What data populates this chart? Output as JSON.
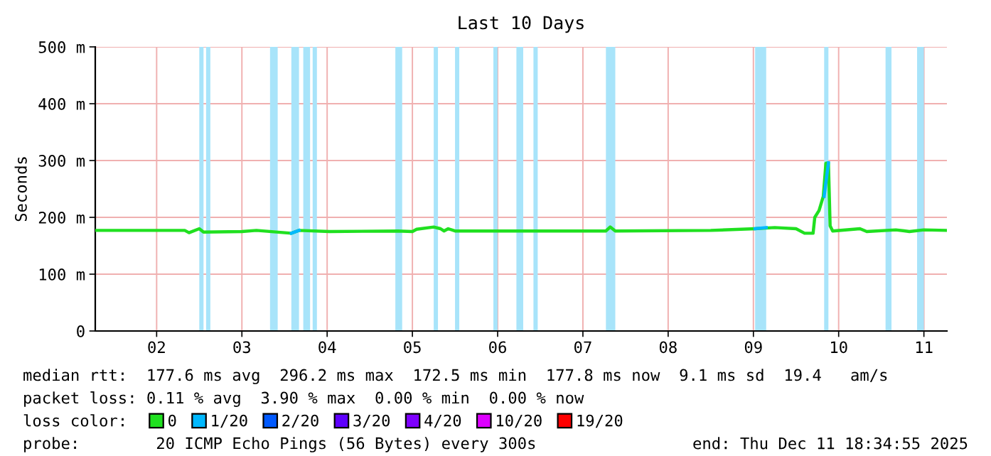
{
  "chart_data": {
    "type": "line",
    "title": "Last 10 Days",
    "ylabel": "Seconds",
    "xlim": [
      1.78,
      11.77
    ],
    "xticks": [
      {
        "value": 2.5,
        "label": "02"
      },
      {
        "value": 3.5,
        "label": "03"
      },
      {
        "value": 4.5,
        "label": "04"
      },
      {
        "value": 5.5,
        "label": "05"
      },
      {
        "value": 6.5,
        "label": "06"
      },
      {
        "value": 7.5,
        "label": "07"
      },
      {
        "value": 8.5,
        "label": "08"
      },
      {
        "value": 9.5,
        "label": "09"
      },
      {
        "value": 10.5,
        "label": "10"
      },
      {
        "value": 11.5,
        "label": "11"
      }
    ],
    "ylim": [
      0,
      500
    ],
    "yticks": [
      0,
      {
        "value": 100,
        "label": "100 m"
      },
      {
        "value": 200,
        "label": "200 m"
      },
      {
        "value": 300,
        "label": "300 m"
      },
      {
        "value": 400,
        "label": "400 m"
      },
      {
        "value": 500,
        "label": "500 m"
      }
    ],
    "grid": true,
    "legend": "bottom",
    "legend_title": "loss color:",
    "marker": "none",
    "line_style": "solid",
    "series": [
      {
        "name": "0",
        "color": "#20e020",
        "x": [
          1.78,
          2.83,
          2.88,
          3.0,
          3.05,
          3.5,
          3.67,
          4.08,
          4.17,
          4.53,
          5.33,
          5.5,
          5.55,
          5.75,
          5.83,
          5.87,
          5.92,
          6.0,
          7.77,
          7.82,
          7.88,
          9.0,
          9.52,
          9.75,
          10.0,
          10.1,
          10.2,
          10.22,
          10.27,
          10.32,
          10.35,
          10.38,
          10.4,
          10.43,
          10.75,
          10.83,
          11.17,
          11.33,
          11.5,
          11.77
        ],
        "values": [
          177,
          177,
          173,
          180,
          174,
          175,
          177,
          172,
          177,
          175,
          176,
          175,
          179,
          183,
          180,
          176,
          180,
          176,
          176,
          183,
          176,
          177,
          180,
          182,
          180,
          172,
          172,
          200,
          212,
          237,
          295,
          296,
          185,
          176,
          180,
          175,
          178,
          175,
          178,
          177
        ]
      },
      {
        "name": "1/20",
        "color": "#00b8ff",
        "x": [
          4.08,
          4.17,
          null,
          9.52,
          9.65,
          null,
          10.33,
          10.38
        ],
        "values": [
          172,
          177,
          null,
          180,
          182,
          null,
          237,
          296
        ]
      },
      {
        "name": "2/20",
        "color": "#0059ff"
      },
      {
        "name": "3/20",
        "color": "#5e00ff"
      },
      {
        "name": "4/20",
        "color": "#7e00ff"
      },
      {
        "name": "10/20",
        "color": "#dd00ff"
      },
      {
        "name": "19/20",
        "color": "#ff0000"
      }
    ],
    "bands": [
      {
        "axis": "x",
        "from": 3.0,
        "to": 3.05,
        "color": "#a8e4fa"
      },
      {
        "axis": "x",
        "from": 3.08,
        "to": 3.13,
        "color": "#a8e4fa"
      },
      {
        "axis": "x",
        "from": 3.83,
        "to": 3.92,
        "color": "#a8e4fa"
      },
      {
        "axis": "x",
        "from": 4.08,
        "to": 4.17,
        "color": "#a8e4fa"
      },
      {
        "axis": "x",
        "from": 4.22,
        "to": 4.3,
        "color": "#a8e4fa"
      },
      {
        "axis": "x",
        "from": 4.33,
        "to": 4.38,
        "color": "#a8e4fa"
      },
      {
        "axis": "x",
        "from": 5.3,
        "to": 5.38,
        "color": "#a8e4fa"
      },
      {
        "axis": "x",
        "from": 5.75,
        "to": 5.8,
        "color": "#a8e4fa"
      },
      {
        "axis": "x",
        "from": 6.0,
        "to": 6.05,
        "color": "#a8e4fa"
      },
      {
        "axis": "x",
        "from": 6.45,
        "to": 6.5,
        "color": "#a8e4fa"
      },
      {
        "axis": "x",
        "from": 6.72,
        "to": 6.8,
        "color": "#a8e4fa"
      },
      {
        "axis": "x",
        "from": 6.92,
        "to": 6.97,
        "color": "#a8e4fa"
      },
      {
        "axis": "x",
        "from": 7.77,
        "to": 7.88,
        "color": "#a8e4fa"
      },
      {
        "axis": "x",
        "from": 9.52,
        "to": 9.65,
        "color": "#a8e4fa"
      },
      {
        "axis": "x",
        "from": 10.33,
        "to": 10.38,
        "color": "#a8e4fa"
      },
      {
        "axis": "x",
        "from": 11.05,
        "to": 11.12,
        "color": "#a8e4fa"
      },
      {
        "axis": "x",
        "from": 11.42,
        "to": 11.5,
        "color": "#a8e4fa"
      }
    ],
    "annotations": [
      "median rtt:  177.6 ms avg  296.2 ms max  172.5 ms min  177.8 ms now  9.1 ms sd  19.4   am/s",
      "packet loss: 0.11 % avg  3.90 % max  0.00 % min  0.00 % now",
      "probe:        20 ICMP Echo Pings (56 Bytes) every 300s",
      "end: Thu Dec 11 18:34:55 2025"
    ]
  }
}
